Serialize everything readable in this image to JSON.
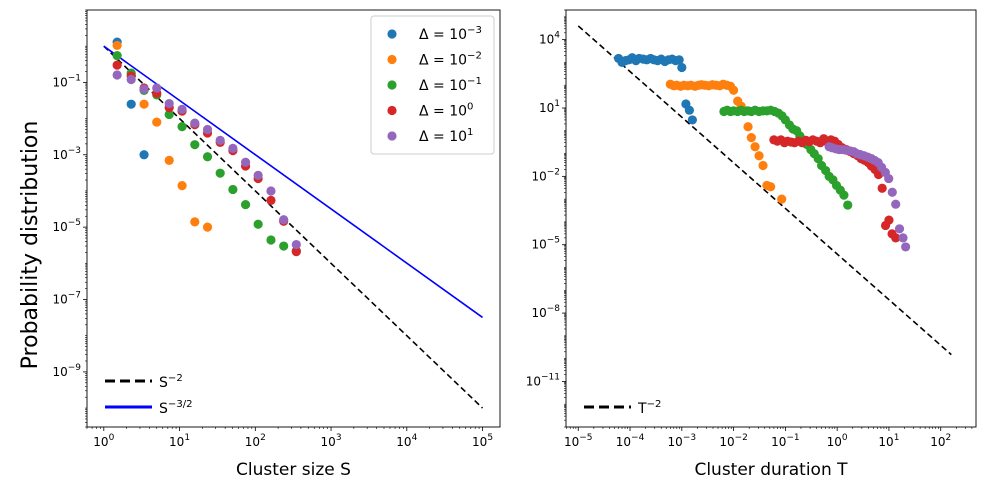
{
  "chart_data": [
    {
      "type": "scatter",
      "x_scale": "log",
      "y_scale": "log",
      "xlabel": "Cluster size S",
      "ylabel": "Probability distribution",
      "xlim": [
        0.6,
        170000
      ],
      "ylim": [
        3e-11,
        10
      ],
      "x_ticks": [
        {
          "v": 1,
          "e": "0"
        },
        {
          "v": 10,
          "e": "1"
        },
        {
          "v": 100,
          "e": "2"
        },
        {
          "v": 1000,
          "e": "3"
        },
        {
          "v": 10000,
          "e": "4"
        },
        {
          "v": 100000,
          "e": "5"
        }
      ],
      "y_ticks": [
        {
          "v": 1e-09,
          "e": "−9"
        },
        {
          "v": 1e-07,
          "e": "−7"
        },
        {
          "v": 1e-05,
          "e": "−5"
        },
        {
          "v": 0.001,
          "e": "−3"
        },
        {
          "v": 0.1,
          "e": "−1"
        }
      ],
      "series": [
        {
          "name": "Δ = 10^−3",
          "color": "#1f77b4",
          "x": [
            1.5,
            2.3,
            3.4
          ],
          "y": [
            1.3,
            0.025,
            0.001
          ]
        },
        {
          "name": "Δ = 10^−2",
          "color": "#ff7f0e",
          "x": [
            1.5,
            2.3,
            3.4,
            5.0,
            7.3,
            10.8,
            15.9,
            23.4
          ],
          "y": [
            1.05,
            0.16,
            0.025,
            0.008,
            0.0007,
            0.00014,
            1.4e-05,
            1e-05
          ]
        },
        {
          "name": "Δ = 10^−1",
          "color": "#2ca02c",
          "x": [
            1.5,
            2.3,
            3.4,
            5.0,
            7.3,
            10.8,
            15.9,
            23.4,
            34.4,
            50.6,
            74.4,
            109,
            161,
            237,
            348
          ],
          "y": [
            0.55,
            0.18,
            0.06,
            0.045,
            0.013,
            0.006,
            0.0019,
            0.00088,
            0.00031,
            0.00011,
            4.2e-05,
            1.2e-05,
            4.4e-06,
            3e-06,
            2.2e-06
          ]
        },
        {
          "name": "Δ = 10^0",
          "color": "#d62728",
          "x": [
            1.5,
            2.3,
            3.4,
            5.0,
            7.3,
            10.8,
            15.9,
            23.4,
            34.4,
            50.6,
            74.4,
            109,
            161,
            237,
            348
          ],
          "y": [
            0.3,
            0.15,
            0.07,
            0.05,
            0.02,
            0.016,
            0.0068,
            0.004,
            0.0022,
            0.0013,
            0.00049,
            0.00022,
            5.5e-05,
            1.45e-05,
            2.1e-06
          ]
        },
        {
          "name": "Δ = 10^1",
          "color": "#9467bd",
          "x": [
            1.5,
            2.3,
            3.4,
            5.0,
            7.3,
            10.8,
            15.9,
            23.4,
            34.4,
            50.6,
            74.4,
            109,
            161,
            237,
            348
          ],
          "y": [
            0.16,
            0.12,
            0.065,
            0.07,
            0.026,
            0.018,
            0.0075,
            0.005,
            0.0025,
            0.0015,
            0.00062,
            0.00027,
            0.0001,
            1.6e-05,
            3.3e-06
          ]
        }
      ],
      "reference_lines": [
        {
          "name": "S^−2",
          "color": "#000000",
          "style": "dashed",
          "x": [
            1,
            100000
          ],
          "y": [
            1,
            1e-10
          ]
        },
        {
          "name": "S^−3/2",
          "color": "#0000ff",
          "style": "solid",
          "x": [
            1,
            100000
          ],
          "y": [
            1,
            3.2e-08
          ]
        }
      ],
      "legend": {
        "placement": "top-right",
        "entries": [
          {
            "base": "Δ = 10",
            "exp": "−3",
            "color": "#1f77b4"
          },
          {
            "base": "Δ = 10",
            "exp": "−2",
            "color": "#ff7f0e"
          },
          {
            "base": "Δ = 10",
            "exp": "−1",
            "color": "#2ca02c"
          },
          {
            "base": "Δ = 10",
            "exp": "0",
            "color": "#d62728"
          },
          {
            "base": "Δ = 10",
            "exp": "1",
            "color": "#9467bd"
          }
        ]
      },
      "legend2": {
        "placement": "bottom-left",
        "entries": [
          {
            "base": "S",
            "exp": "−2",
            "color": "#000000",
            "style": "dashed"
          },
          {
            "base": "S",
            "exp": "−3/2",
            "color": "#0000ff",
            "style": "solid"
          }
        ]
      }
    },
    {
      "type": "scatter",
      "x_scale": "log",
      "y_scale": "log",
      "xlabel": "Cluster duration T",
      "ylabel": "",
      "xlim": [
        5.8e-06,
        480
      ],
      "ylim": [
        1e-13,
        200000.0
      ],
      "x_ticks": [
        {
          "v": 1e-05,
          "e": "−5"
        },
        {
          "v": 0.0001,
          "e": "−4"
        },
        {
          "v": 0.001,
          "e": "−3"
        },
        {
          "v": 0.01,
          "e": "−2"
        },
        {
          "v": 0.1,
          "e": "−1"
        },
        {
          "v": 1,
          "e": "0"
        },
        {
          "v": 10,
          "e": "1"
        },
        {
          "v": 100,
          "e": "2"
        }
      ],
      "y_ticks": [
        {
          "v": 1e-11,
          "e": "−11"
        },
        {
          "v": 1e-08,
          "e": "−8"
        },
        {
          "v": 1e-05,
          "e": "−5"
        },
        {
          "v": 0.01,
          "e": "−2"
        },
        {
          "v": 10,
          "e": "1"
        },
        {
          "v": 10000,
          "e": "4"
        }
      ],
      "series": [
        {
          "name": "Δ = 10^−3",
          "color": "#1f77b4",
          "x": [
            6e-05,
            7e-05,
            8.2e-05,
            9.5e-05,
            0.00011,
            0.00013,
            0.00015,
            0.00018,
            0.00021,
            0.00025,
            0.00029,
            0.00034,
            0.0004,
            0.00047,
            0.00055,
            0.00065,
            0.00076,
            0.00089,
            0.001,
            0.0012,
            0.0014,
            0.0016
          ],
          "y": [
            1500,
            1000,
            1200,
            1300,
            1600,
            1200,
            1500,
            1400,
            1300,
            1500,
            1300,
            1200,
            1400,
            1100,
            1300,
            1400,
            1200,
            1300,
            600,
            15,
            8,
            3
          ]
        },
        {
          "name": "Δ = 10^−2",
          "color": "#ff7f0e",
          "x": [
            0.0006,
            0.0007,
            0.0008,
            0.00095,
            0.0011,
            0.0013,
            0.0015,
            0.0018,
            0.0021,
            0.0024,
            0.0028,
            0.0033,
            0.0039,
            0.0046,
            0.0054,
            0.0063,
            0.0074,
            0.0087,
            0.01,
            0.012,
            0.014,
            0.016,
            0.019,
            0.022,
            0.026,
            0.031,
            0.037,
            0.044,
            0.052,
            0.085
          ],
          "y": [
            110,
            95,
            100,
            90,
            100,
            95,
            100,
            90,
            100,
            105,
            100,
            95,
            105,
            100,
            95,
            110,
            100,
            90,
            60,
            20,
            12,
            8,
            1.5,
            0.5,
            0.2,
            0.08,
            0.03,
            0.004,
            0.0035,
            0.001
          ]
        },
        {
          "name": "Δ = 10^−1",
          "color": "#2ca02c",
          "x": [
            0.0065,
            0.0075,
            0.0087,
            0.01,
            0.012,
            0.014,
            0.016,
            0.019,
            0.022,
            0.026,
            0.031,
            0.037,
            0.044,
            0.052,
            0.062,
            0.073,
            0.086,
            0.1,
            0.12,
            0.14,
            0.165,
            0.19,
            0.22,
            0.26,
            0.31,
            0.36,
            0.43,
            0.5,
            0.6,
            0.7,
            0.83,
            0.97,
            1.15,
            1.35,
            1.6
          ],
          "y": [
            7,
            8,
            7,
            7.5,
            7,
            8,
            7,
            7.5,
            7,
            8,
            7,
            7.5,
            7.5,
            8,
            7,
            6,
            4.5,
            3,
            1.8,
            1.2,
            1.0,
            0.6,
            0.4,
            0.25,
            0.15,
            0.1,
            0.06,
            0.03,
            0.018,
            0.01,
            0.007,
            0.004,
            0.0025,
            0.0015,
            0.00055
          ]
        },
        {
          "name": "Δ = 10^0",
          "color": "#d62728",
          "x": [
            0.06,
            0.07,
            0.082,
            0.096,
            0.11,
            0.13,
            0.15,
            0.18,
            0.21,
            0.25,
            0.29,
            0.34,
            0.4,
            0.47,
            0.55,
            0.65,
            0.76,
            0.89,
            1.05,
            1.25,
            1.5,
            1.8,
            2.1,
            2.5,
            2.9,
            3.4,
            4.0,
            4.6,
            5.4,
            6.3,
            7.4,
            8.6,
            10.0,
            11.5,
            13.5
          ],
          "y": [
            0.4,
            0.35,
            0.4,
            0.3,
            0.35,
            0.32,
            0.3,
            0.35,
            0.3,
            0.38,
            0.33,
            0.4,
            0.35,
            0.3,
            0.45,
            0.32,
            0.4,
            0.35,
            0.25,
            0.18,
            0.15,
            0.12,
            0.1,
            0.08,
            0.06,
            0.05,
            0.04,
            0.028,
            0.02,
            0.012,
            0.003,
            7e-05,
            0.00012,
            3e-05,
            2e-05
          ]
        },
        {
          "name": "Δ = 10^1",
          "color": "#9467bd",
          "x": [
            0.7,
            0.8,
            0.95,
            1.1,
            1.3,
            1.5,
            1.8,
            2.1,
            2.4,
            2.8,
            3.3,
            3.9,
            4.6,
            5.3,
            6.2,
            7.2,
            8.5,
            9.9,
            11.6,
            13.5,
            16.0,
            18.7,
            21.0
          ],
          "y": [
            0.2,
            0.18,
            0.16,
            0.15,
            0.15,
            0.14,
            0.13,
            0.12,
            0.1,
            0.09,
            0.08,
            0.07,
            0.06,
            0.05,
            0.04,
            0.025,
            0.015,
            0.008,
            0.002,
            0.0006,
            5e-05,
            2e-05,
            8e-06
          ]
        }
      ],
      "reference_lines": [
        {
          "name": "T^−2",
          "color": "#000000",
          "style": "dashed",
          "x": [
            1e-05,
            160
          ],
          "y": [
            40000,
            1.5e-10
          ]
        }
      ],
      "legend2": {
        "placement": "bottom-left",
        "entries": [
          {
            "base": "T",
            "exp": "−2",
            "color": "#000000",
            "style": "dashed"
          }
        ]
      }
    }
  ]
}
